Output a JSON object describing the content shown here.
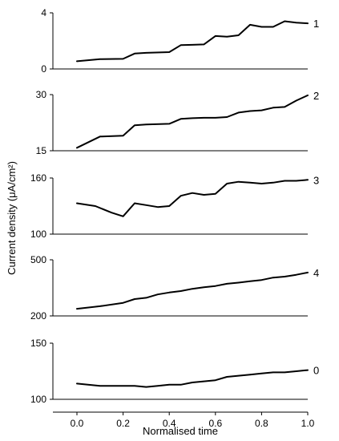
{
  "chart_data": {
    "type": "line",
    "xlabel": "Normalised time",
    "ylabel": "Current density (μA/cm²)",
    "x_ticks": [
      "0.0",
      "0.2",
      "0.4",
      "0.6",
      "0.8",
      "1.0"
    ],
    "xlim": [
      0,
      1
    ],
    "grid": false,
    "panels": [
      {
        "label": "1",
        "ylim": [
          0,
          4
        ],
        "y_ticks": [
          "4",
          "0"
        ],
        "x": [
          0.0,
          0.1,
          0.2,
          0.25,
          0.3,
          0.4,
          0.45,
          0.5,
          0.55,
          0.6,
          0.65,
          0.7,
          0.75,
          0.8,
          0.85,
          0.9,
          0.95,
          1.0
        ],
        "y": [
          0.55,
          0.7,
          0.72,
          1.1,
          1.15,
          1.2,
          1.7,
          1.72,
          1.75,
          2.35,
          2.3,
          2.4,
          3.15,
          3.0,
          3.0,
          3.4,
          3.3,
          3.25
        ]
      },
      {
        "label": "2",
        "ylim": [
          15,
          30
        ],
        "y_ticks": [
          "30",
          "15"
        ],
        "x": [
          0.0,
          0.1,
          0.2,
          0.25,
          0.3,
          0.4,
          0.45,
          0.5,
          0.55,
          0.6,
          0.65,
          0.7,
          0.75,
          0.8,
          0.85,
          0.9,
          0.95,
          1.0
        ],
        "y": [
          15.8,
          18.8,
          19.0,
          21.8,
          22.0,
          22.2,
          23.5,
          23.7,
          23.8,
          23.8,
          24.0,
          25.2,
          25.6,
          25.8,
          26.5,
          26.7,
          28.4,
          29.8
        ]
      },
      {
        "label": "3",
        "ylim": [
          100,
          160
        ],
        "y_ticks": [
          "160",
          "100"
        ],
        "x": [
          0.0,
          0.08,
          0.15,
          0.2,
          0.25,
          0.3,
          0.35,
          0.4,
          0.45,
          0.5,
          0.55,
          0.6,
          0.65,
          0.7,
          0.75,
          0.8,
          0.85,
          0.9,
          0.95,
          1.0
        ],
        "y": [
          133,
          130,
          123,
          119,
          133,
          131,
          129,
          130,
          141,
          144,
          142,
          143,
          154,
          156,
          155,
          154,
          155,
          157,
          157,
          158
        ]
      },
      {
        "label": "4",
        "ylim": [
          200,
          500
        ],
        "y_ticks": [
          "500",
          "200"
        ],
        "x": [
          0.0,
          0.1,
          0.2,
          0.25,
          0.3,
          0.35,
          0.4,
          0.45,
          0.5,
          0.55,
          0.6,
          0.65,
          0.7,
          0.75,
          0.8,
          0.85,
          0.9,
          0.95,
          1.0
        ],
        "y": [
          238,
          252,
          270,
          290,
          297,
          315,
          325,
          333,
          345,
          353,
          360,
          372,
          378,
          385,
          392,
          405,
          410,
          420,
          432
        ]
      },
      {
        "label": "0",
        "ylim": [
          100,
          150
        ],
        "y_ticks": [
          "150",
          "100"
        ],
        "x": [
          0.0,
          0.1,
          0.15,
          0.2,
          0.25,
          0.3,
          0.35,
          0.4,
          0.45,
          0.5,
          0.55,
          0.6,
          0.65,
          0.7,
          0.75,
          0.8,
          0.85,
          0.9,
          0.95,
          1.0
        ],
        "y": [
          114,
          112,
          112,
          112,
          112,
          111,
          112,
          113,
          113,
          115,
          116,
          117,
          120,
          121,
          122,
          123,
          124,
          124,
          125,
          126
        ]
      }
    ]
  }
}
